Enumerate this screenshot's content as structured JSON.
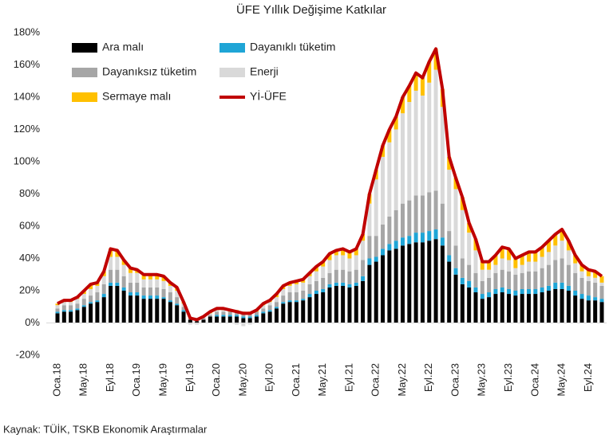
{
  "chart_data": {
    "type": "bar",
    "stacked": true,
    "title": "ÜFE Yıllık Değişime Katkılar",
    "source": "Kaynak: TÜİK, TSKB Ekonomik Araştırmalar",
    "categories": [
      "Oca.18",
      null,
      null,
      null,
      "May.18",
      null,
      null,
      null,
      "Eyl.18",
      null,
      null,
      null,
      "Oca.19",
      null,
      null,
      null,
      "May.19",
      null,
      null,
      null,
      "Eyl.19",
      null,
      null,
      null,
      "Oca.20",
      null,
      null,
      null,
      "May.20",
      null,
      null,
      null,
      "Eyl.20",
      null,
      null,
      null,
      "Oca.21",
      null,
      null,
      null,
      "May.21",
      null,
      null,
      null,
      "Eyl.21",
      null,
      null,
      null,
      "Oca.22",
      null,
      null,
      null,
      "May.22",
      null,
      null,
      null,
      "Eyl.22",
      null,
      null,
      null,
      "Oca.23",
      null,
      null,
      null,
      "May.23",
      null,
      null,
      null,
      "Eyl.23",
      null,
      null,
      null,
      "Oca.24",
      null,
      null,
      null,
      "May.24",
      null,
      null,
      null,
      "Eyl.24",
      null,
      null
    ],
    "series": [
      {
        "name": "Ara malı",
        "color": "#000000",
        "values": [
          6,
          7,
          7,
          8,
          10,
          12,
          13,
          16,
          23,
          23,
          20,
          17,
          17,
          15,
          15,
          15,
          15,
          13,
          11,
          7,
          2,
          1,
          2,
          4,
          4,
          4,
          4,
          4,
          3,
          3,
          4,
          6,
          7,
          9,
          12,
          13,
          13,
          14,
          16,
          18,
          19,
          22,
          23,
          23,
          22,
          23,
          26,
          36,
          38,
          42,
          45,
          46,
          48,
          49,
          50,
          50,
          51,
          52,
          48,
          38,
          30,
          24,
          22,
          19,
          15,
          16,
          18,
          19,
          18,
          17,
          18,
          18,
          18,
          19,
          20,
          21,
          21,
          20,
          17,
          15,
          14,
          14,
          13
        ]
      },
      {
        "name": "Dayanıklı tüketim",
        "color": "#1fa5d6",
        "values": [
          1,
          1,
          1,
          1,
          1,
          1,
          1,
          2,
          2,
          2,
          2,
          2,
          2,
          2,
          2,
          2,
          1,
          1,
          1,
          1,
          0,
          0,
          0,
          0,
          1,
          1,
          1,
          1,
          1,
          1,
          1,
          1,
          1,
          1,
          1,
          1,
          1,
          1,
          2,
          2,
          2,
          2,
          2,
          2,
          2,
          2,
          3,
          4,
          3,
          4,
          4,
          5,
          5,
          5,
          6,
          6,
          6,
          6,
          5,
          4,
          4,
          4,
          4,
          3,
          3,
          3,
          3,
          3,
          3,
          3,
          3,
          3,
          3,
          3,
          3,
          4,
          4,
          3,
          3,
          3,
          3,
          2,
          2
        ]
      },
      {
        "name": "Dayanıksız tüketim",
        "color": "#a6a6a6",
        "values": [
          2,
          3,
          3,
          3,
          4,
          4,
          5,
          6,
          8,
          8,
          7,
          6,
          6,
          5,
          5,
          5,
          5,
          5,
          4,
          2,
          1,
          1,
          1,
          1,
          2,
          2,
          2,
          2,
          2,
          2,
          2,
          2,
          3,
          3,
          4,
          5,
          5,
          5,
          6,
          6,
          7,
          7,
          8,
          8,
          8,
          8,
          10,
          14,
          13,
          15,
          17,
          19,
          21,
          22,
          23,
          23,
          24,
          24,
          21,
          15,
          14,
          12,
          10,
          9,
          8,
          9,
          10,
          11,
          11,
          10,
          10,
          11,
          11,
          12,
          13,
          14,
          15,
          13,
          11,
          10,
          9,
          9,
          8
        ]
      },
      {
        "name": "Enerji",
        "color": "#d9d9d9",
        "values": [
          2,
          2,
          2,
          3,
          3,
          4,
          4,
          5,
          8,
          8,
          7,
          6,
          6,
          5,
          5,
          5,
          5,
          4,
          4,
          2,
          -1,
          -1,
          1,
          1,
          1,
          1,
          0,
          -1,
          -2,
          -1,
          0,
          2,
          2,
          3,
          4,
          4,
          5,
          5,
          5,
          6,
          7,
          8,
          9,
          9,
          8,
          9,
          12,
          20,
          35,
          42,
          46,
          50,
          56,
          61,
          65,
          62,
          68,
          75,
          60,
          38,
          35,
          30,
          20,
          14,
          7,
          5,
          5,
          7,
          7,
          4,
          5,
          6,
          6,
          7,
          8,
          9,
          11,
          9,
          6,
          4,
          3,
          3,
          2
        ]
      },
      {
        "name": "Sermaye malı",
        "color": "#ffc000",
        "values": [
          1,
          1,
          1,
          1,
          2,
          3,
          2,
          3,
          5,
          4,
          3,
          3,
          2,
          3,
          3,
          3,
          3,
          2,
          2,
          1,
          0,
          0,
          0,
          1,
          1,
          1,
          1,
          1,
          1,
          1,
          1,
          1,
          1,
          2,
          2,
          2,
          2,
          2,
          2,
          3,
          3,
          4,
          3,
          4,
          4,
          4,
          4,
          6,
          6,
          7,
          8,
          8,
          10,
          10,
          11,
          11,
          13,
          13,
          11,
          8,
          7,
          8,
          6,
          7,
          5,
          5,
          6,
          7,
          7,
          6,
          6,
          6,
          6,
          6,
          7,
          7,
          7,
          6,
          5,
          4,
          4,
          4,
          4
        ]
      },
      {
        "name": "Yİ-ÜFE",
        "color": "#c00000",
        "type": "line",
        "values": [
          12,
          14,
          14,
          16,
          20,
          24,
          25,
          32,
          46,
          45,
          39,
          34,
          33,
          30,
          30,
          30,
          29,
          25,
          22,
          13,
          3,
          2,
          4,
          7,
          9,
          9,
          8,
          7,
          6,
          6,
          8,
          12,
          14,
          18,
          23,
          25,
          26,
          27,
          31,
          35,
          38,
          43,
          45,
          46,
          44,
          46,
          55,
          80,
          95,
          110,
          120,
          128,
          140,
          147,
          155,
          152,
          162,
          170,
          145,
          103,
          90,
          78,
          62,
          52,
          38,
          38,
          42,
          47,
          46,
          40,
          42,
          44,
          44,
          47,
          51,
          55,
          58,
          51,
          42,
          36,
          33,
          32,
          29
        ]
      }
    ],
    "ylim": [
      -20,
      180
    ],
    "yticks": [
      {
        "value": -20,
        "label": "-20%"
      },
      {
        "value": 0,
        "label": "0%"
      },
      {
        "value": 20,
        "label": "20%"
      },
      {
        "value": 40,
        "label": "40%"
      },
      {
        "value": 60,
        "label": "60%"
      },
      {
        "value": 80,
        "label": "80%"
      },
      {
        "value": 100,
        "label": "100%"
      },
      {
        "value": 120,
        "label": "120%"
      },
      {
        "value": 140,
        "label": "140%"
      },
      {
        "value": 160,
        "label": "160%"
      },
      {
        "value": 180,
        "label": "180%"
      }
    ],
    "legend": "top-left"
  }
}
